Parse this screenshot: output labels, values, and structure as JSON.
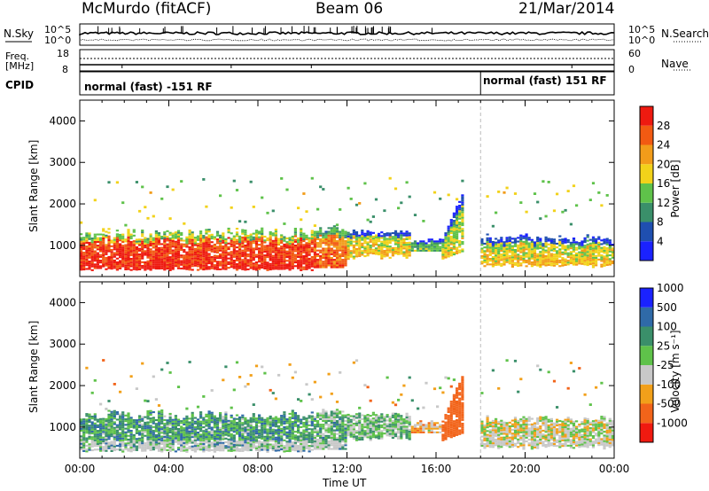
{
  "header": {
    "title": "McMurdo (fitACF)",
    "beam": "Beam 06",
    "date": "21/Mar/2014"
  },
  "side_labels": {
    "nsky": "N.Sky",
    "nsearch": "N.Search",
    "freq_line1": "Freq.",
    "freq_line2": "[MHz]",
    "nave": "Nave",
    "cpid": "CPID"
  },
  "noise_axis": {
    "left_top": "10^5",
    "left_bottom": "10^0",
    "right_top": "10^5",
    "right_bottom": "10^0"
  },
  "freq_axis": {
    "left_top": "18",
    "left_bottom": "8",
    "right_top": "60",
    "right_bottom": "0"
  },
  "cpid": {
    "mode1": "normal (fast) -151 RF",
    "mode2": "normal (fast) 151 RF",
    "mode_change_hour": 18
  },
  "colors": {
    "power": [
      "#1a22ff",
      "#1f4fb0",
      "#3a8f6a",
      "#5fc24a",
      "#f2d21a",
      "#f29c1a",
      "#f25a12",
      "#ee1a10"
    ],
    "velocity": [
      "#f01a10",
      "#f2641a",
      "#f2a01a",
      "#c8c8c8",
      "#5fc24a",
      "#3a8f6a",
      "#2f6aa8",
      "#1a22ff"
    ]
  },
  "chart_data": [
    {
      "type": "heatmap",
      "name": "power-panel",
      "xlabel": "",
      "ylabel": "Slant Range [km]",
      "xlim": [
        0,
        24
      ],
      "ylim": [
        250,
        4500
      ],
      "yticks": [
        "1000",
        "2000",
        "3000",
        "4000"
      ],
      "colorbar_label": "Power [dB]",
      "colorbar_ticks": [
        "4",
        "8",
        "12",
        "16",
        "20",
        "24",
        "28"
      ],
      "echo_bands": [
        {
          "start_hour": 0.0,
          "end_hour": 10.5,
          "range_low": 350,
          "range_high": 1300,
          "level": "high"
        },
        {
          "start_hour": 10.5,
          "end_hour": 14.5,
          "range_low": 500,
          "range_high": 1300,
          "level": "mixed"
        },
        {
          "start_hour": 14.5,
          "end_hour": 16.5,
          "range_low": 700,
          "range_high": 1100,
          "level": "low"
        },
        {
          "start_hour": 16.5,
          "end_hour": 17.0,
          "range_low": 600,
          "range_high": 2200,
          "level": "mixed"
        },
        {
          "start_hour": 18.0,
          "end_hour": 24.0,
          "range_low": 400,
          "range_high": 1200,
          "level": "mixed"
        }
      ]
    },
    {
      "type": "heatmap",
      "name": "velocity-panel",
      "xlabel": "Time UT",
      "ylabel": "Slant Range [km]",
      "xlim": [
        0,
        24
      ],
      "ylim": [
        250,
        4500
      ],
      "xticks": [
        "00:00",
        "04:00",
        "08:00",
        "12:00",
        "16:00",
        "20:00",
        "00:00"
      ],
      "yticks": [
        "1000",
        "2000",
        "3000",
        "4000"
      ],
      "colorbar_label": "Velocity [m s⁻¹]",
      "colorbar_ticks": [
        "-1000",
        "-500",
        "-100",
        "-25",
        "25",
        "100",
        "500",
        "1000"
      ],
      "echo_bands": [
        {
          "start_hour": 0.0,
          "end_hour": 11.0,
          "range_low": 350,
          "range_high": 1300,
          "velocity": "low-positive"
        },
        {
          "start_hour": 2.0,
          "end_hour": 9.5,
          "range_low": 1600,
          "range_high": 2300,
          "velocity": "negative"
        },
        {
          "start_hour": 11.0,
          "end_hour": 16.5,
          "range_low": 500,
          "range_high": 1300,
          "velocity": "mixed"
        },
        {
          "start_hour": 16.5,
          "end_hour": 17.2,
          "range_low": 600,
          "range_high": 2500,
          "velocity": "negative"
        },
        {
          "start_hour": 18.0,
          "end_hour": 24.0,
          "range_low": 400,
          "range_high": 1200,
          "velocity": "mixed"
        }
      ]
    }
  ]
}
